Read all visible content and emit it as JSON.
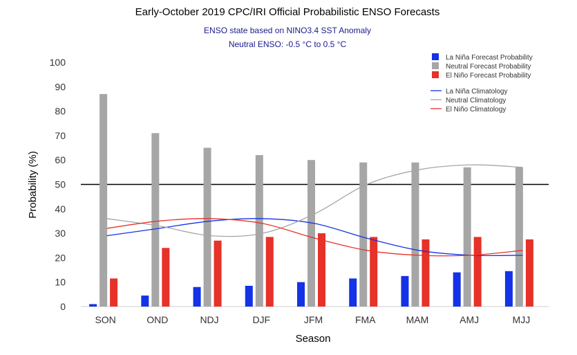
{
  "chart_data": {
    "type": "bar",
    "title": "Early-October 2019 CPC/IRI Official Probabilistic ENSO Forecasts",
    "subtitle_lines": [
      "ENSO state based on NINO3.4 SST Anomaly",
      "Neutral ENSO: -0.5 °C to 0.5 °C"
    ],
    "xlabel": "Season",
    "ylabel": "Probability (%)",
    "ylim": [
      0,
      100
    ],
    "yticks": [
      0,
      10,
      20,
      30,
      40,
      50,
      60,
      70,
      80,
      90,
      100
    ],
    "reference_line": 50,
    "categories": [
      "SON",
      "OND",
      "NDJ",
      "DJF",
      "JFM",
      "FMA",
      "MAM",
      "AMJ",
      "MJJ"
    ],
    "series": [
      {
        "name": "La Niña Forecast Probability",
        "kind": "bar",
        "color": "#1432e6",
        "values": [
          1,
          4.5,
          8,
          8.5,
          10,
          11.5,
          12.5,
          14,
          14.5
        ]
      },
      {
        "name": "Neutral Forecast Probability",
        "kind": "bar",
        "color": "#a6a6a6",
        "values": [
          87,
          71,
          65,
          62,
          60,
          59,
          59,
          57,
          57
        ]
      },
      {
        "name": "El Niño Forecast Probability",
        "kind": "bar",
        "color": "#e63228",
        "values": [
          11.5,
          24,
          27,
          28.5,
          30,
          28.5,
          27.5,
          28.5,
          27.5
        ]
      },
      {
        "name": "La Niña Climatology",
        "kind": "line",
        "color": "#1432e6",
        "values": [
          29,
          32,
          35,
          36,
          34,
          28,
          23,
          21,
          21
        ]
      },
      {
        "name": "Neutral Climatology",
        "kind": "line",
        "color": "#a6a6a6",
        "values": [
          36,
          33,
          29,
          30,
          38,
          50,
          56,
          58,
          57
        ]
      },
      {
        "name": "El Niño Climatology",
        "kind": "line",
        "color": "#e63228",
        "values": [
          32,
          35,
          36,
          34,
          28,
          23,
          21,
          21,
          23
        ]
      }
    ]
  }
}
